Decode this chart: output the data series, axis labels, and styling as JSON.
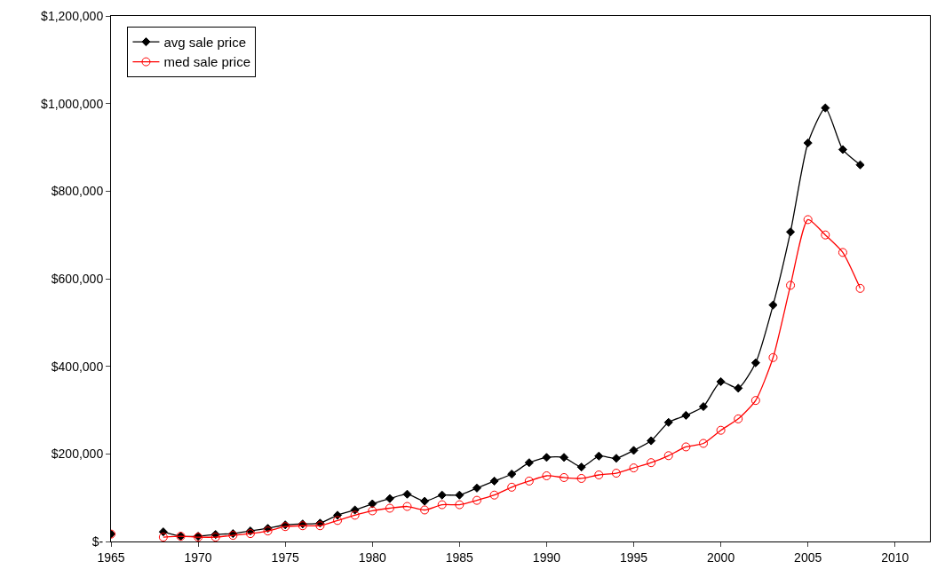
{
  "chart_data": {
    "type": "line",
    "x": [
      1965,
      1966,
      1967,
      1968,
      1969,
      1970,
      1971,
      1972,
      1973,
      1974,
      1975,
      1976,
      1977,
      1978,
      1979,
      1980,
      1981,
      1982,
      1983,
      1984,
      1985,
      1986,
      1987,
      1988,
      1989,
      1990,
      1991,
      1992,
      1993,
      1994,
      1995,
      1996,
      1997,
      1998,
      1999,
      2000,
      2001,
      2002,
      2003,
      2004,
      2005,
      2006,
      2007,
      2008
    ],
    "series": [
      {
        "name": "avg sale price",
        "color": "#000000",
        "marker": "diamond",
        "values": [
          17000,
          null,
          null,
          22000,
          12000,
          12000,
          16000,
          18000,
          24000,
          30000,
          38000,
          40000,
          42000,
          60000,
          72000,
          86000,
          98000,
          108000,
          92000,
          106000,
          106000,
          122000,
          138000,
          154000,
          180000,
          192000,
          192000,
          170000,
          195000,
          190000,
          208000,
          230000,
          272000,
          288000,
          308000,
          365000,
          350000,
          408000,
          540000,
          707000,
          910000,
          990000,
          895000,
          860000
        ]
      },
      {
        "name": "med sale price",
        "color": "#ff0000",
        "marker": "circle",
        "values": [
          17000,
          null,
          null,
          10000,
          12000,
          10000,
          10000,
          14000,
          18000,
          24000,
          34000,
          36000,
          36000,
          48000,
          60000,
          70000,
          76000,
          80000,
          72000,
          84000,
          84000,
          94000,
          106000,
          124000,
          138000,
          150000,
          146000,
          144000,
          152000,
          156000,
          168000,
          180000,
          196000,
          216000,
          224000,
          254000,
          280000,
          322000,
          420000,
          585000,
          735000,
          700000,
          660000,
          578000
        ]
      }
    ],
    "xlim": [
      1965,
      2012
    ],
    "xticks": [
      1965,
      1970,
      1975,
      1980,
      1985,
      1990,
      1995,
      2000,
      2005,
      2010
    ],
    "ylim": [
      0,
      1200000
    ],
    "yticks": [
      {
        "value": 0,
        "label": "$-"
      },
      {
        "value": 200000,
        "label": "$200,000"
      },
      {
        "value": 400000,
        "label": "$400,000"
      },
      {
        "value": 600000,
        "label": "$600,000"
      },
      {
        "value": 800000,
        "label": "$800,000"
      },
      {
        "value": 1000000,
        "label": "$1,000,000"
      },
      {
        "value": 1200000,
        "label": "$1,200,000"
      }
    ],
    "grid": false,
    "legend": "top left",
    "line_style": "solid"
  }
}
